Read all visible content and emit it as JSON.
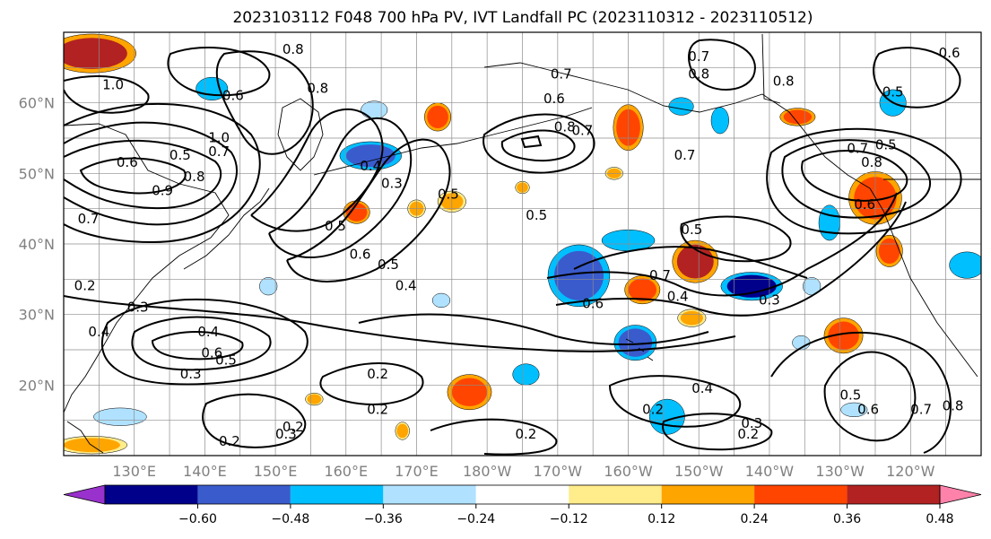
{
  "title": "2023103112 F048 700 hPa PV, IVT Landfall PC (2023110312 - 2023110512)",
  "map": {
    "lat_range": [
      10,
      70
    ],
    "lon_range": [
      120,
      250
    ],
    "lat_ticks": [
      {
        "value": 20,
        "label": "20°N"
      },
      {
        "value": 30,
        "label": "30°N"
      },
      {
        "value": 40,
        "label": "40°N"
      },
      {
        "value": 50,
        "label": "50°N"
      },
      {
        "value": 60,
        "label": "60°N"
      }
    ],
    "lon_ticks": [
      {
        "value": 130,
        "label": "130°E"
      },
      {
        "value": 140,
        "label": "140°E"
      },
      {
        "value": 150,
        "label": "150°E"
      },
      {
        "value": 160,
        "label": "160°E"
      },
      {
        "value": 170,
        "label": "170°E"
      },
      {
        "value": 180,
        "label": "180°W"
      },
      {
        "value": 190,
        "label": "170°W"
      },
      {
        "value": 200,
        "label": "160°W"
      },
      {
        "value": 210,
        "label": "150°W"
      },
      {
        "value": 220,
        "label": "140°W"
      },
      {
        "value": 230,
        "label": "130°W"
      },
      {
        "value": 240,
        "label": "120°W"
      }
    ],
    "gridlines": true
  },
  "colorbar": {
    "levels": [
      -0.72,
      -0.6,
      -0.48,
      -0.36,
      -0.24,
      -0.12,
      0.12,
      0.24,
      0.36,
      0.48,
      0.6,
      0.72
    ],
    "colors": [
      "#9932cc",
      "#00008b",
      "#3a5bcc",
      "#00bfff",
      "#b0e2ff",
      "#ffffff",
      "#ffec8b",
      "#ffa500",
      "#ff4500",
      "#b22222",
      "#ff82ab"
    ],
    "tick_labels": [
      "−0.60",
      "−0.48",
      "−0.36",
      "−0.24",
      "−0.12",
      "0.12",
      "0.24",
      "0.36",
      "0.48",
      "0.60"
    ],
    "extend": "both"
  },
  "shaded_anomalies": [
    {
      "lon": 124,
      "lat": 67,
      "rx": 5,
      "ry": 2.2,
      "level": 0.48
    },
    {
      "lon": 141,
      "lat": 62,
      "rx": 1.8,
      "ry": 1.3,
      "level": -0.36
    },
    {
      "lon": 164,
      "lat": 59,
      "rx": 1.5,
      "ry": 1.0,
      "level": -0.24
    },
    {
      "lon": 163.5,
      "lat": 52.5,
      "rx": 3.5,
      "ry": 1.6,
      "level": -0.48
    },
    {
      "lon": 173,
      "lat": 58,
      "rx": 1.5,
      "ry": 1.6,
      "level": 0.36
    },
    {
      "lon": 161.5,
      "lat": 44.5,
      "rx": 1.5,
      "ry": 1.3,
      "level": 0.36
    },
    {
      "lon": 175,
      "lat": 46,
      "rx": 1.6,
      "ry": 1.2,
      "level": 0.24
    },
    {
      "lon": 170,
      "lat": 45,
      "rx": 1.0,
      "ry": 1.0,
      "level": 0.24
    },
    {
      "lon": 185,
      "lat": 48,
      "rx": 0.8,
      "ry": 0.7,
      "level": 0.24
    },
    {
      "lon": 200,
      "lat": 56.5,
      "rx": 1.7,
      "ry": 2.6,
      "level": 0.36
    },
    {
      "lon": 207.5,
      "lat": 59.5,
      "rx": 1.4,
      "ry": 1.0,
      "level": -0.36
    },
    {
      "lon": 198,
      "lat": 50,
      "rx": 1.0,
      "ry": 0.7,
      "level": 0.24
    },
    {
      "lon": 213,
      "lat": 57.5,
      "rx": 1.0,
      "ry": 1.5,
      "level": -0.36
    },
    {
      "lon": 224,
      "lat": 58,
      "rx": 2.0,
      "ry": 1.0,
      "level": 0.36
    },
    {
      "lon": 235,
      "lat": 46.5,
      "rx": 3.0,
      "ry": 3.0,
      "level": 0.36
    },
    {
      "lon": 228.5,
      "lat": 43,
      "rx": 1.2,
      "ry": 2.0,
      "level": -0.36
    },
    {
      "lon": 248,
      "lat": 37,
      "rx": 2.0,
      "ry": 1.5,
      "level": -0.36
    },
    {
      "lon": 237,
      "lat": 39,
      "rx": 1.5,
      "ry": 1.8,
      "level": 0.36
    },
    {
      "lon": 237.5,
      "lat": 60,
      "rx": 1.5,
      "ry": 1.5,
      "level": -0.36
    },
    {
      "lon": 193,
      "lat": 35.5,
      "rx": 3.5,
      "ry": 3.5,
      "level": -0.48
    },
    {
      "lon": 200,
      "lat": 40.5,
      "rx": 3.0,
      "ry": 1.2,
      "level": -0.36
    },
    {
      "lon": 209.5,
      "lat": 37.5,
      "rx": 2.6,
      "ry": 2.4,
      "level": 0.48
    },
    {
      "lon": 217.5,
      "lat": 34,
      "rx": 3.5,
      "ry": 1.6,
      "level": -0.6
    },
    {
      "lon": 202,
      "lat": 33.5,
      "rx": 2.0,
      "ry": 1.6,
      "level": 0.36
    },
    {
      "lon": 209,
      "lat": 29.5,
      "rx": 1.6,
      "ry": 1.0,
      "level": 0.24
    },
    {
      "lon": 201,
      "lat": 26,
      "rx": 2.4,
      "ry": 2.0,
      "level": -0.48
    },
    {
      "lon": 230.5,
      "lat": 27,
      "rx": 2.2,
      "ry": 2.0,
      "level": 0.36
    },
    {
      "lon": 224.5,
      "lat": 26,
      "rx": 1.0,
      "ry": 0.8,
      "level": -0.24
    },
    {
      "lon": 177.5,
      "lat": 19,
      "rx": 2.5,
      "ry": 2.0,
      "level": 0.36
    },
    {
      "lon": 185.5,
      "lat": 21.5,
      "rx": 1.5,
      "ry": 1.2,
      "level": -0.36
    },
    {
      "lon": 205.5,
      "lat": 15.5,
      "rx": 2.0,
      "ry": 2.0,
      "level": -0.36
    },
    {
      "lon": 232,
      "lat": 16.5,
      "rx": 1.5,
      "ry": 0.8,
      "level": -0.24
    },
    {
      "lon": 128,
      "lat": 15.5,
      "rx": 3.0,
      "ry": 1.0,
      "level": -0.24
    },
    {
      "lon": 124,
      "lat": 11.5,
      "rx": 4.0,
      "ry": 1.0,
      "level": 0.24
    },
    {
      "lon": 149,
      "lat": 34,
      "rx": 1.0,
      "ry": 1.0,
      "level": -0.24
    },
    {
      "lon": 173.5,
      "lat": 32,
      "rx": 1.0,
      "ry": 0.8,
      "level": -0.24
    },
    {
      "lon": 155.5,
      "lat": 18,
      "rx": 1.0,
      "ry": 0.7,
      "level": 0.24
    },
    {
      "lon": 168,
      "lat": 13.5,
      "rx": 0.8,
      "ry": 1.0,
      "level": 0.24
    },
    {
      "lon": 226,
      "lat": 34,
      "rx": 1.0,
      "ry": 1.0,
      "level": -0.24
    }
  ],
  "contour_labels": [
    {
      "lon": 152.5,
      "lat": 67.5,
      "text": "0.8"
    },
    {
      "lon": 127,
      "lat": 62.5,
      "text": "1.0"
    },
    {
      "lon": 144,
      "lat": 61,
      "text": "0.6"
    },
    {
      "lon": 156,
      "lat": 62,
      "text": "0.8"
    },
    {
      "lon": 142,
      "lat": 55,
      "text": "1.0"
    },
    {
      "lon": 136.5,
      "lat": 52.5,
      "text": "0.5"
    },
    {
      "lon": 129,
      "lat": 51.5,
      "text": "0.6"
    },
    {
      "lon": 142,
      "lat": 53,
      "text": "0.7"
    },
    {
      "lon": 134,
      "lat": 47.5,
      "text": "0.9"
    },
    {
      "lon": 138.5,
      "lat": 49.5,
      "text": "0.8"
    },
    {
      "lon": 123.5,
      "lat": 43.5,
      "text": "0.7"
    },
    {
      "lon": 163.5,
      "lat": 51,
      "text": "0.4"
    },
    {
      "lon": 166.5,
      "lat": 48.5,
      "text": "0.3"
    },
    {
      "lon": 174.5,
      "lat": 47,
      "text": "0.5"
    },
    {
      "lon": 158.5,
      "lat": 42.5,
      "text": "0.5"
    },
    {
      "lon": 162,
      "lat": 38.5,
      "text": "0.6"
    },
    {
      "lon": 166,
      "lat": 37,
      "text": "0.5"
    },
    {
      "lon": 168.5,
      "lat": 34,
      "text": "0.4"
    },
    {
      "lon": 123,
      "lat": 34,
      "text": "0.2"
    },
    {
      "lon": 130.5,
      "lat": 31,
      "text": "0.3"
    },
    {
      "lon": 125,
      "lat": 27.5,
      "text": "0.4"
    },
    {
      "lon": 140.5,
      "lat": 27.5,
      "text": "0.4"
    },
    {
      "lon": 141,
      "lat": 24.5,
      "text": "0.6"
    },
    {
      "lon": 143,
      "lat": 23.5,
      "text": "0.5"
    },
    {
      "lon": 138,
      "lat": 21.5,
      "text": "0.3"
    },
    {
      "lon": 164.5,
      "lat": 21.5,
      "text": "0.2"
    },
    {
      "lon": 164.5,
      "lat": 16.5,
      "text": "0.2"
    },
    {
      "lon": 151.5,
      "lat": 13,
      "text": "0.3"
    },
    {
      "lon": 152.5,
      "lat": 14,
      "text": "0.2"
    },
    {
      "lon": 143.5,
      "lat": 12,
      "text": "0.2"
    },
    {
      "lon": 185.5,
      "lat": 13,
      "text": "0.2"
    },
    {
      "lon": 190.5,
      "lat": 64,
      "text": "0.7"
    },
    {
      "lon": 189.5,
      "lat": 60.5,
      "text": "0.6"
    },
    {
      "lon": 191,
      "lat": 56.5,
      "text": "0.8"
    },
    {
      "lon": 193.5,
      "lat": 56,
      "text": "0.7"
    },
    {
      "lon": 208,
      "lat": 52.5,
      "text": "0.7"
    },
    {
      "lon": 187,
      "lat": 44,
      "text": "0.5"
    },
    {
      "lon": 209,
      "lat": 42,
      "text": "0.5"
    },
    {
      "lon": 204.5,
      "lat": 35.5,
      "text": "0.7"
    },
    {
      "lon": 207,
      "lat": 32.5,
      "text": "0.4"
    },
    {
      "lon": 195,
      "lat": 31.5,
      "text": "0.6"
    },
    {
      "lon": 220,
      "lat": 32,
      "text": "0.3"
    },
    {
      "lon": 210.5,
      "lat": 19.5,
      "text": "0.4"
    },
    {
      "lon": 203.5,
      "lat": 16.5,
      "text": "0.2"
    },
    {
      "lon": 217.5,
      "lat": 14.5,
      "text": "0.3"
    },
    {
      "lon": 217,
      "lat": 13,
      "text": "0.2"
    },
    {
      "lon": 210,
      "lat": 66.5,
      "text": "0.7"
    },
    {
      "lon": 210,
      "lat": 64,
      "text": "0.8"
    },
    {
      "lon": 222,
      "lat": 63,
      "text": "0.8"
    },
    {
      "lon": 237.5,
      "lat": 61.5,
      "text": "0.5"
    },
    {
      "lon": 236.5,
      "lat": 54,
      "text": "0.5"
    },
    {
      "lon": 232.5,
      "lat": 53.5,
      "text": "0.7"
    },
    {
      "lon": 234.5,
      "lat": 51.5,
      "text": "0.8"
    },
    {
      "lon": 233.5,
      "lat": 45.5,
      "text": "0.6"
    },
    {
      "lon": 231.5,
      "lat": 18.5,
      "text": "0.5"
    },
    {
      "lon": 234,
      "lat": 16.5,
      "text": "0.6"
    },
    {
      "lon": 241.5,
      "lat": 16.5,
      "text": "0.7"
    },
    {
      "lon": 246,
      "lat": 17,
      "text": "0.8"
    },
    {
      "lon": 245.5,
      "lat": 67,
      "text": "0.6"
    }
  ]
}
